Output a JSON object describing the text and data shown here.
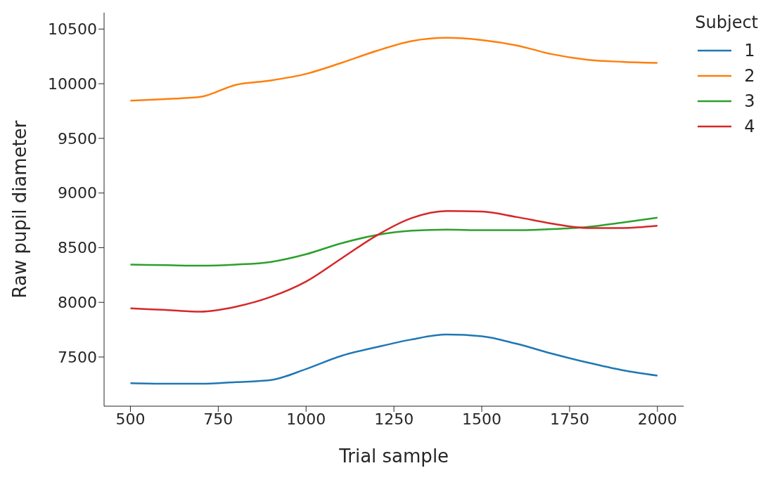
{
  "chart_data": {
    "type": "line",
    "xlabel": "Trial sample",
    "ylabel": "Raw pupil diameter",
    "legend_title": "Subject",
    "legend": "right",
    "grid": false,
    "marker": "none",
    "line_style": "solid",
    "x": [
      500,
      600,
      700,
      800,
      900,
      1000,
      1100,
      1200,
      1300,
      1400,
      1500,
      1600,
      1700,
      1800,
      1900,
      2000
    ],
    "xlim": [
      425,
      2075
    ],
    "xticks": [
      500,
      750,
      1000,
      1250,
      1500,
      1750,
      2000
    ],
    "ylim": [
      7050,
      10650
    ],
    "yticks": [
      7500,
      8000,
      8500,
      9000,
      9500,
      10000,
      10500
    ],
    "series": [
      {
        "name": "1",
        "color": "#1f77b4",
        "values": [
          7260,
          7255,
          7255,
          7270,
          7290,
          7390,
          7510,
          7590,
          7660,
          7705,
          7690,
          7620,
          7530,
          7450,
          7380,
          7330
        ]
      },
      {
        "name": "2",
        "color": "#ff7f0e",
        "values": [
          9845,
          9860,
          9880,
          9990,
          10030,
          10090,
          10190,
          10300,
          10390,
          10420,
          10400,
          10350,
          10270,
          10220,
          10200,
          10190
        ]
      },
      {
        "name": "3",
        "color": "#2ca02c",
        "values": [
          8345,
          8340,
          8335,
          8345,
          8370,
          8440,
          8540,
          8615,
          8655,
          8665,
          8660,
          8660,
          8670,
          8690,
          8730,
          8775
        ]
      },
      {
        "name": "4",
        "color": "#d62728",
        "values": [
          7945,
          7930,
          7915,
          7960,
          8050,
          8190,
          8400,
          8610,
          8770,
          8835,
          8830,
          8780,
          8720,
          8680,
          8680,
          8700
        ]
      }
    ]
  }
}
